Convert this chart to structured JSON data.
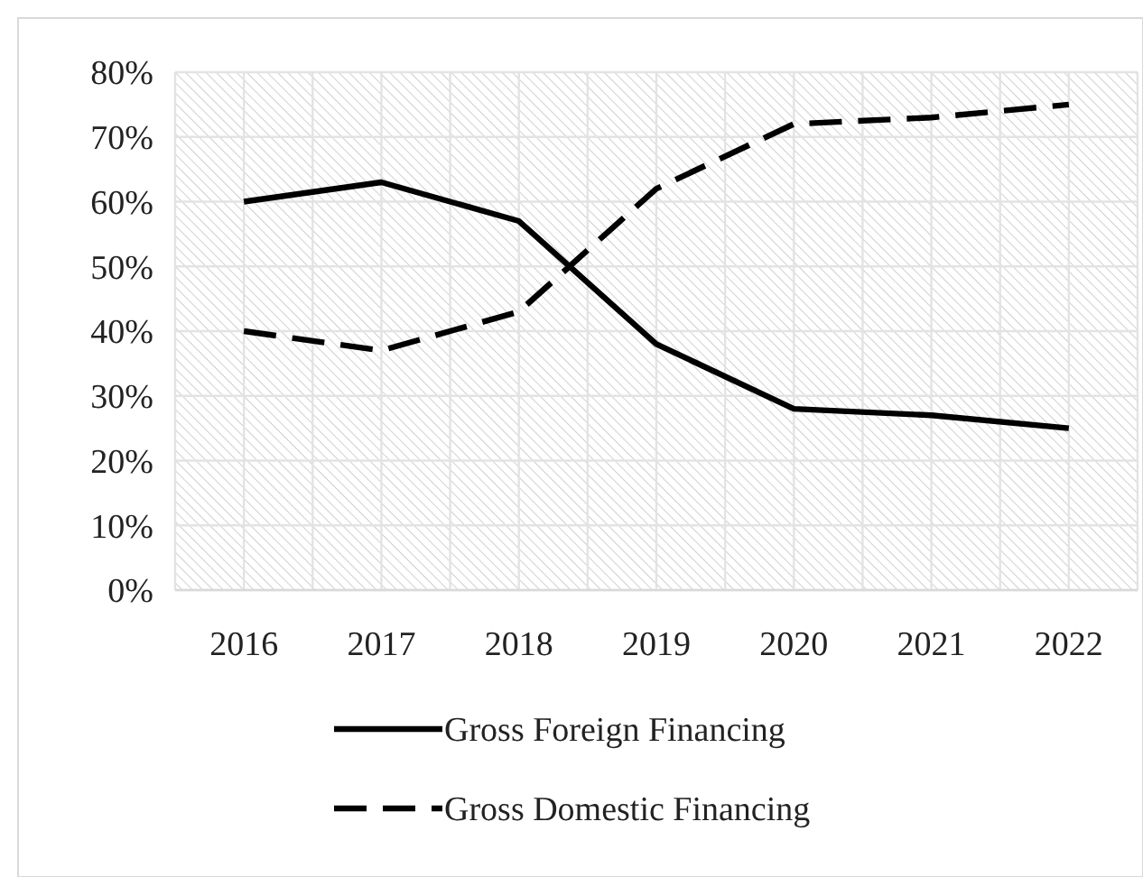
{
  "chart_data": {
    "type": "line",
    "categories": [
      "2016",
      "2017",
      "2018",
      "2019",
      "2020",
      "2021",
      "2022"
    ],
    "series": [
      {
        "name": "Gross Foreign Financing",
        "color": "#000000",
        "line_style": "solid",
        "values": [
          60,
          63,
          57,
          38,
          28,
          27,
          25
        ]
      },
      {
        "name": "Gross Domestic Financing",
        "color": "#000000",
        "line_style": "dashed",
        "values": [
          40,
          37,
          43,
          62,
          72,
          73,
          75
        ]
      }
    ],
    "ylim": [
      0,
      80
    ],
    "yticks": [
      {
        "value": 0,
        "label": "0%"
      },
      {
        "value": 10,
        "label": "10%"
      },
      {
        "value": 20,
        "label": "20%"
      },
      {
        "value": 30,
        "label": "30%"
      },
      {
        "value": 40,
        "label": "40%"
      },
      {
        "value": 50,
        "label": "50%"
      },
      {
        "value": 60,
        "label": "60%"
      },
      {
        "value": 70,
        "label": "70%"
      },
      {
        "value": 80,
        "label": "80%"
      }
    ],
    "grid": true,
    "legend": "bottom"
  }
}
